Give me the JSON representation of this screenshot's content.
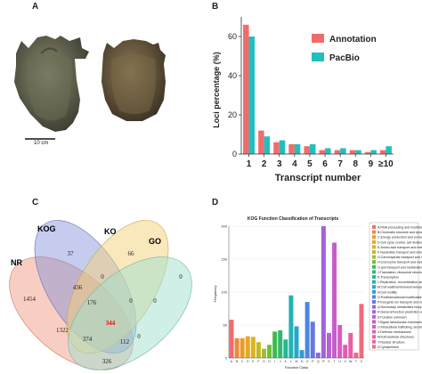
{
  "panels": {
    "a": {
      "label": "A",
      "scale_text": "10 cm"
    },
    "b": {
      "label": "B"
    },
    "c": {
      "label": "C"
    },
    "d": {
      "label": "D"
    }
  },
  "chart_data": [
    {
      "type": "bar",
      "categories": [
        "1",
        "2",
        "3",
        "4",
        "5",
        "6",
        "7",
        "8",
        "9",
        "≥10"
      ],
      "series": [
        {
          "name": "Annotation",
          "color": "#f26b6b",
          "values": [
            66,
            12,
            6,
            5,
            4,
            2,
            2,
            2,
            1,
            2
          ]
        },
        {
          "name": "PacBio",
          "color": "#21bfbf",
          "values": [
            60,
            9,
            7,
            5,
            5,
            3,
            3,
            2,
            2,
            4
          ]
        }
      ],
      "title": "",
      "xlabel": "Transcript number",
      "ylabel": "Loci percentage (%)",
      "ylim": [
        0,
        70
      ],
      "yticks": [
        0,
        20,
        40,
        60
      ],
      "legend": "top-right"
    },
    {
      "type": "venn",
      "sets": [
        "NR",
        "KOG",
        "KO",
        "GO"
      ],
      "colors": {
        "NR": "#f4a58f",
        "KOG": "#7f8fd6",
        "KO": "#f4d27a",
        "GO": "#9fdfcf"
      },
      "regions": [
        {
          "value": "37",
          "sets": [
            "KOG"
          ]
        },
        {
          "value": "66",
          "sets": [
            "KO"
          ]
        },
        {
          "value": "0",
          "sets": [
            "GO"
          ]
        },
        {
          "value": "1454",
          "sets": [
            "NR"
          ]
        },
        {
          "value": "436",
          "sets": [
            "NR",
            "KOG"
          ]
        },
        {
          "value": "0",
          "sets": [
            "KOG",
            "KO"
          ]
        },
        {
          "value": "0",
          "sets": [
            "KO",
            "GO"
          ]
        },
        {
          "value": "176",
          "sets": [
            "NR",
            "KOG",
            "KO"
          ]
        },
        {
          "value": "0",
          "sets": [
            "KOG",
            "KO",
            "GO"
          ]
        },
        {
          "value": "344",
          "sets": [
            "NR",
            "KOG",
            "KO",
            "GO"
          ],
          "highlight": "#ff0000"
        },
        {
          "value": "1322",
          "sets": [
            "NR",
            "KO"
          ]
        },
        {
          "value": "374",
          "sets": [
            "NR",
            "KO",
            "GO"
          ]
        },
        {
          "value": "112",
          "sets": [
            "NR",
            "KOG",
            "GO"
          ]
        },
        {
          "value": "0",
          "sets": [
            "KOG",
            "GO"
          ]
        },
        {
          "value": "326",
          "sets": [
            "NR",
            "GO"
          ]
        }
      ]
    },
    {
      "type": "bar",
      "title": "KOG Function Classification of Transcripts",
      "xlabel": "Function Class",
      "ylabel": "Frequency",
      "ylim": [
        0,
        200
      ],
      "yticks": [
        0,
        50,
        100,
        150,
        200
      ],
      "categories": [
        "A",
        "B",
        "C",
        "D",
        "E",
        "F",
        "G",
        "H",
        "I",
        "J",
        "K",
        "L",
        "M",
        "N",
        "O",
        "P",
        "Q",
        "R",
        "S",
        "T",
        "U",
        "V",
        "W",
        "Y",
        "Z"
      ],
      "values": [
        58,
        30,
        30,
        33,
        32,
        24,
        14,
        20,
        40,
        42,
        28,
        95,
        48,
        12,
        85,
        55,
        8,
        200,
        38,
        175,
        50,
        20,
        38,
        8,
        82
      ],
      "colors": [
        "#f26b6b",
        "#ee8a3a",
        "#ec9a2b",
        "#e6a822",
        "#ddb31f",
        "#c4b827",
        "#9fbf2d",
        "#6cbf38",
        "#3dbb4c",
        "#2fba73",
        "#25b795",
        "#22b2b3",
        "#25a8c9",
        "#2f9ad8",
        "#4a88e0",
        "#6677e2",
        "#8a6ae0",
        "#a362dc",
        "#b75fd5",
        "#c75ccb",
        "#d55cc0",
        "#e05db3",
        "#e85fa4",
        "#ee6694",
        "#f06b80"
      ],
      "legend": "right",
      "legend_entries": [
        "A:RNA processing and modification",
        "B:Chromatin structure and dynamics",
        "C:Energy production and conversion",
        "D:Cell cycle control, cell division",
        "E:Amino acid transport and metabolism",
        "F:Nucleotide transport and metabolism",
        "G:Carbohydrate transport and metabolism",
        "H:Coenzyme transport and metabolism",
        "I:Lipid transport and metabolism",
        "J:Translation, ribosomal structure",
        "K:Transcription",
        "L:Replication, recombination and repair",
        "M:Cell wall/membrane/envelope biogenesis",
        "N:Cell motility",
        "O:Posttranslational modification",
        "P:Inorganic ion transport and metabolism",
        "Q:Secondary metabolites biosynthesis",
        "R:General function prediction only",
        "S:Function unknown",
        "T:Signal transduction mechanisms",
        "U:Intracellular trafficking, secretion",
        "V:Defense mechanisms",
        "W:Extracellular structures",
        "Y:Nuclear structure",
        "Z:Cytoskeleton"
      ]
    }
  ]
}
